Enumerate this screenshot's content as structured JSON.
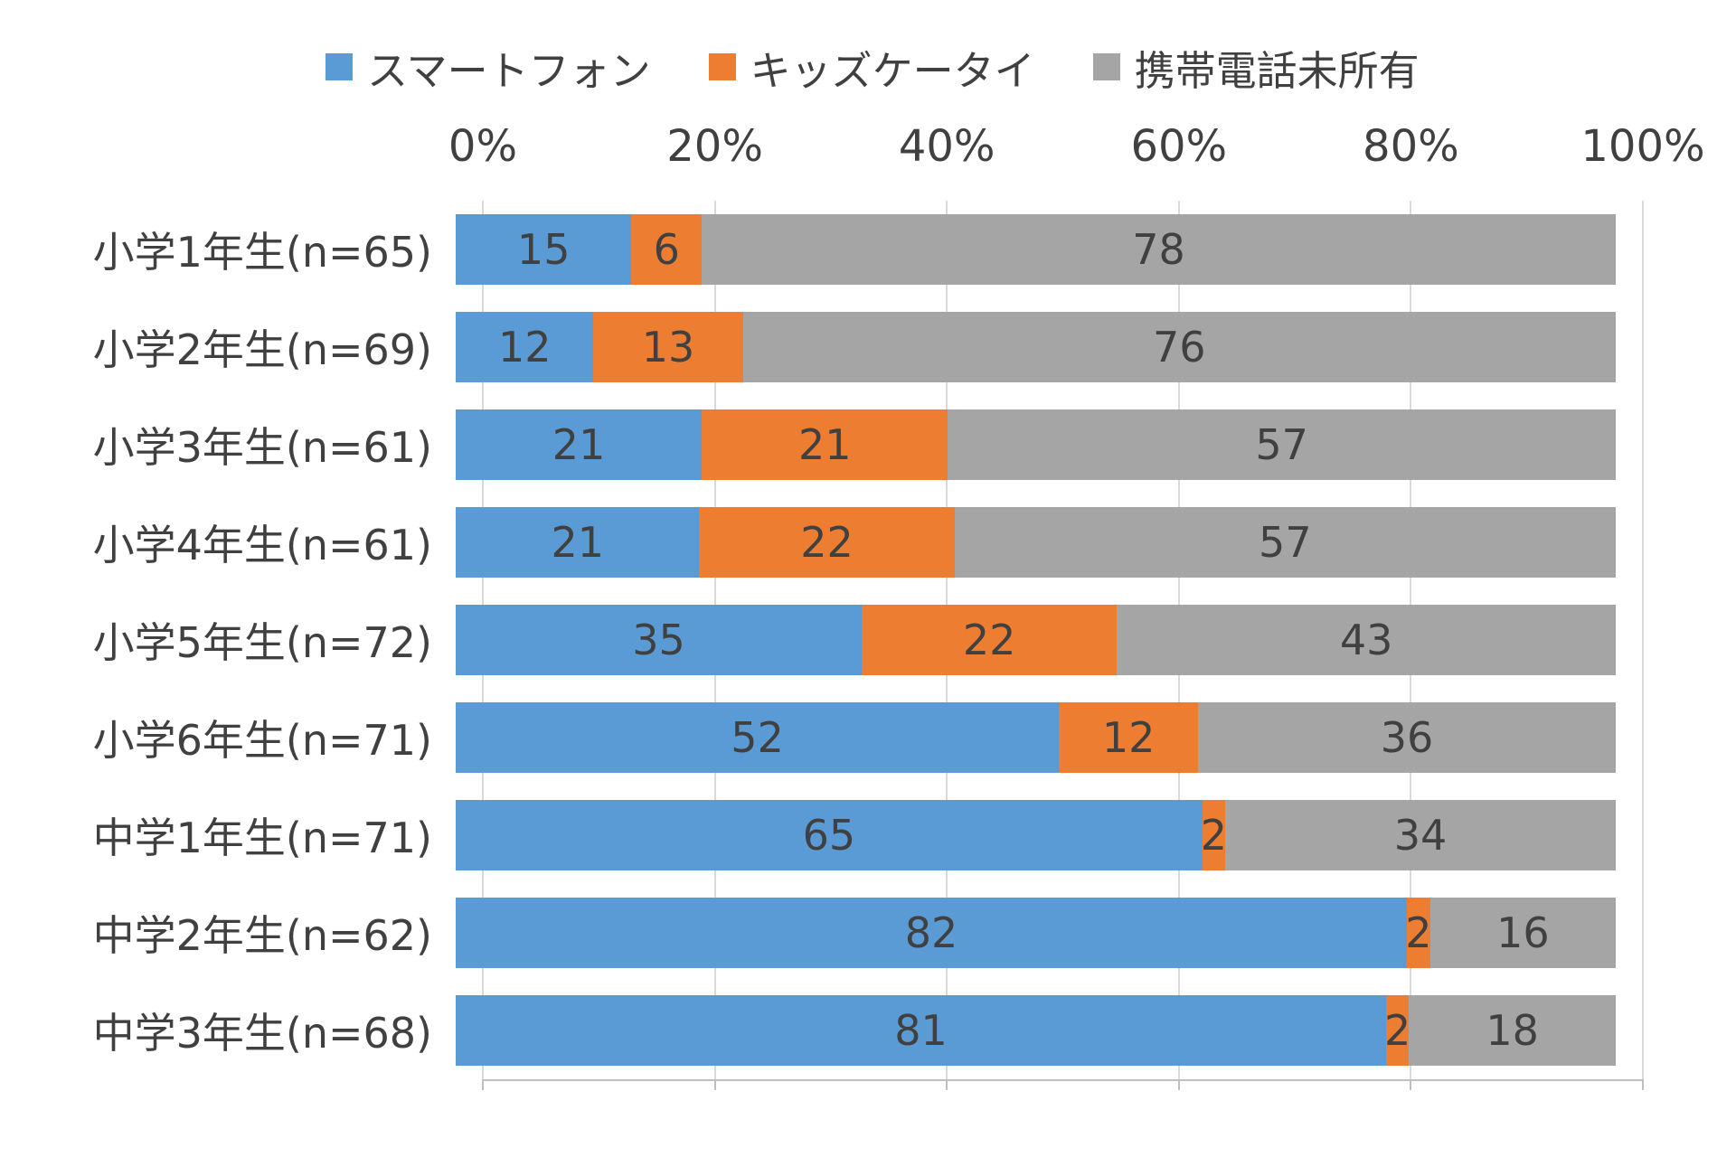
{
  "chart_data": {
    "type": "bar",
    "orientation": "horizontal",
    "stacked": true,
    "stacked_percent": true,
    "grid": true,
    "legend_position": "top",
    "categories": [
      "小学1年生(n=65)",
      "小学2年生(n=69)",
      "小学3年生(n=61)",
      "小学4年生(n=61)",
      "小学5年生(n=72)",
      "小学6年生(n=71)",
      "中学1年生(n=71)",
      "中学2年生(n=62)",
      "中学3年生(n=68)"
    ],
    "series": [
      {
        "name": "スマートフォン",
        "color": "#5B9BD5",
        "values": [
          15,
          12,
          21,
          21,
          35,
          52,
          65,
          82,
          81
        ]
      },
      {
        "name": "キッズケータイ",
        "color": "#ED7D31",
        "values": [
          6,
          13,
          21,
          22,
          22,
          12,
          2,
          2,
          2
        ]
      },
      {
        "name": "携帯電話未所有",
        "color": "#A5A5A5",
        "values": [
          78,
          76,
          57,
          57,
          43,
          36,
          34,
          16,
          18
        ]
      }
    ],
    "x_axis": {
      "position": "top",
      "min": 0,
      "max": 100,
      "ticks": [
        "0%",
        "20%",
        "40%",
        "60%",
        "80%",
        "100%"
      ]
    },
    "colors": {
      "grid": "#D9D9D9",
      "axis_line": "#BFBFBF",
      "text": "#404040",
      "background": "#FFFFFF"
    }
  }
}
